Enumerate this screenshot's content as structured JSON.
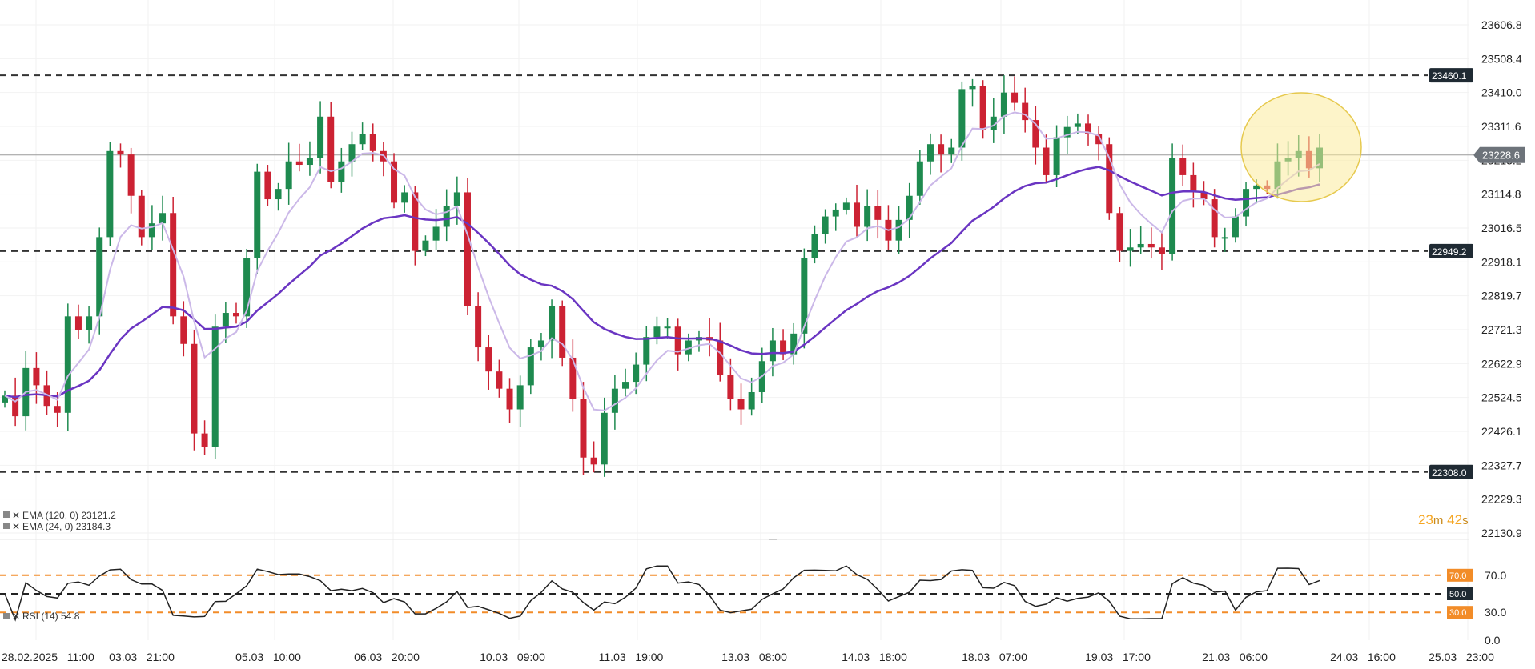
{
  "chart_data": {
    "type": "candlestick",
    "symbol_panel": {
      "indicators": [
        {
          "label": "EMA (120, 0) 23121.2",
          "color": "#6a35c2"
        },
        {
          "label": "EMA (24, 0) 23184.3",
          "color": "#cbb8e8"
        }
      ]
    },
    "price_axis": {
      "ticks": [
        "23606.8",
        "23508.4",
        "23410.0",
        "23311.6",
        "23213.2",
        "23114.8",
        "23016.5",
        "22918.1",
        "22819.7",
        "22721.3",
        "22622.9",
        "22524.5",
        "22426.1",
        "22327.7",
        "22229.3",
        "22130.9"
      ],
      "range": [
        22130.9,
        23606.8
      ]
    },
    "current_price": {
      "value": 23228.6,
      "label": "23228.6"
    },
    "horizontal_levels": [
      {
        "value": 23460.1,
        "label": "23460.1"
      },
      {
        "value": 22949.2,
        "label": "22949.2"
      },
      {
        "value": 22308.0,
        "label": "22308.0"
      }
    ],
    "time_axis": {
      "labels": [
        "28.02.2025   11:00",
        "03.03   21:00",
        "05.03   10:00",
        "06.03   20:00",
        "10.03   09:00",
        "11.03   19:00",
        "13.03   08:00",
        "14.03   18:00",
        "18.03   07:00",
        "19.03   17:00",
        "21.03   06:00",
        "24.03   16:00",
        "25.03   23:00"
      ]
    },
    "countdown": {
      "minutes": "23",
      "minutes_unit": "m",
      "seconds": "42",
      "seconds_unit": "s"
    },
    "close_series": [
      22530,
      22470,
      22610,
      22560,
      22500,
      22480,
      22760,
      22720,
      22760,
      22990,
      23240,
      23230,
      23110,
      22990,
      23030,
      23060,
      22760,
      22680,
      22420,
      22380,
      22730,
      22770,
      22760,
      22930,
      23180,
      23100,
      23130,
      23210,
      23200,
      23220,
      23340,
      23150,
      23210,
      23260,
      23290,
      23240,
      23210,
      23090,
      23120,
      22950,
      22980,
      23020,
      23080,
      23120,
      22790,
      22670,
      22600,
      22550,
      22490,
      22560,
      22670,
      22690,
      22790,
      22640,
      22520,
      22350,
      22330,
      22480,
      22550,
      22570,
      22620,
      22700,
      22730,
      22730,
      22650,
      22690,
      22700,
      22690,
      22590,
      22520,
      22490,
      22540,
      22630,
      22690,
      22650,
      22710,
      22930,
      23000,
      23050,
      23070,
      23090,
      23020,
      23080,
      23040,
      22980,
      23040,
      23110,
      23210,
      23260,
      23230,
      23250,
      23420,
      23430,
      23300,
      23340,
      23410,
      23380,
      23330,
      23250,
      23170,
      23280,
      23310,
      23320,
      23290,
      23260,
      23060,
      22950,
      22960,
      22970,
      22960,
      22940,
      23220,
      23170,
      23120,
      23100,
      22990,
      22990,
      23050,
      23130,
      23140,
      23130,
      23210,
      23220,
      23240,
      23190,
      23250
    ],
    "rsi": {
      "label": "RSI (14) 54.8",
      "axis_ticks": [
        "70.0",
        "30.0",
        "0.0"
      ],
      "levels": [
        {
          "value": 70,
          "label": "70.0"
        },
        {
          "value": 50,
          "label": "50.0"
        },
        {
          "value": 30,
          "label": "30.0"
        }
      ],
      "range": [
        0,
        100
      ]
    }
  }
}
